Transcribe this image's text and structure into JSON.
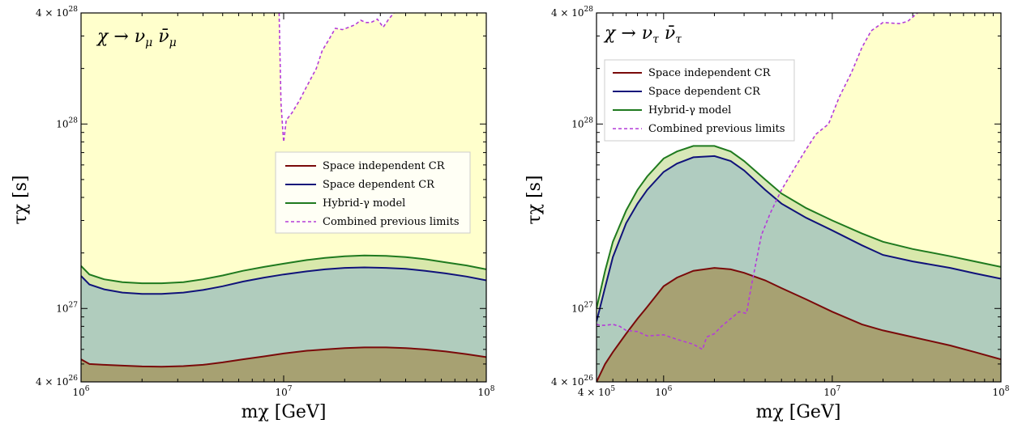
{
  "colors": {
    "excluded_fill": "#ffffcc",
    "space_independent": "#7a0a0a",
    "space_dependent": "#10127a",
    "hybrid": "#1f7a1f",
    "combined": "#b43cd8",
    "fill_space_independent": "#a4935a",
    "fill_space_dependent": "#a3c3c3",
    "fill_hybrid": "#cbe0a0"
  },
  "chart_data": [
    {
      "type": "area",
      "title": "χ → νμ ν̄μ",
      "xlabel": "mχ [GeV]",
      "ylabel": "τχ [s]",
      "xscale": "log",
      "yscale": "log",
      "xlim": [
        1000000,
        100000000
      ],
      "ylim": [
        4e+26,
        4e+28
      ],
      "xtick_labels": [
        "10^6",
        "10^7",
        "10^8"
      ],
      "ytick_labels": [
        "4 × 10^26",
        "10^27",
        "10^28",
        "4 × 10^28"
      ],
      "legend_position": "center-right",
      "legend": [
        "Space independent CR",
        "Space dependent CR",
        "Hybrid-γ model",
        "Combined previous limits"
      ],
      "series": [
        {
          "name": "Space independent CR",
          "x": [
            1000000,
            1100000,
            1300000,
            1600000,
            2000000,
            2500000,
            3200000,
            4000000,
            5000000,
            6300000,
            8000000,
            10000000,
            13000000,
            16000000,
            20000000,
            25000000,
            32000000,
            40000000,
            50000000,
            63000000,
            80000000,
            100000000
          ],
          "y": [
            5.3e+26,
            5e+26,
            4.95e+26,
            4.9e+26,
            4.85e+26,
            4.83e+26,
            4.87e+26,
            4.95e+26,
            5.1e+26,
            5.3e+26,
            5.5e+26,
            5.7e+26,
            5.9e+26,
            6e+26,
            6.1e+26,
            6.15e+26,
            6.15e+26,
            6.1e+26,
            6e+26,
            5.85e+26,
            5.65e+26,
            5.45e+26
          ]
        },
        {
          "name": "Space dependent CR",
          "x": [
            1000000,
            1100000,
            1300000,
            1600000,
            2000000,
            2500000,
            3200000,
            4000000,
            5000000,
            6300000,
            8000000,
            10000000,
            13000000,
            16000000,
            20000000,
            25000000,
            32000000,
            40000000,
            50000000,
            63000000,
            80000000,
            100000000
          ],
          "y": [
            1.5e+27,
            1.35e+27,
            1.27e+27,
            1.22e+27,
            1.2e+27,
            1.2e+27,
            1.22e+27,
            1.26e+27,
            1.32e+27,
            1.4e+27,
            1.47e+27,
            1.53e+27,
            1.59e+27,
            1.63e+27,
            1.66e+27,
            1.67e+27,
            1.66e+27,
            1.64e+27,
            1.6e+27,
            1.55e+27,
            1.49e+27,
            1.42e+27
          ]
        },
        {
          "name": "Hybrid-γ model",
          "x": [
            1000000,
            1100000,
            1300000,
            1600000,
            2000000,
            2500000,
            3200000,
            4000000,
            5000000,
            6300000,
            8000000,
            10000000,
            13000000,
            16000000,
            20000000,
            25000000,
            32000000,
            40000000,
            50000000,
            63000000,
            80000000,
            100000000
          ],
          "y": [
            1.7e+27,
            1.53e+27,
            1.44e+27,
            1.39e+27,
            1.37e+27,
            1.37e+27,
            1.39e+27,
            1.44e+27,
            1.51e+27,
            1.6e+27,
            1.68e+27,
            1.75e+27,
            1.83e+27,
            1.88e+27,
            1.92e+27,
            1.94e+27,
            1.93e+27,
            1.9e+27,
            1.85e+27,
            1.78e+27,
            1.71e+27,
            1.63e+27
          ]
        },
        {
          "name": "Combined previous limits",
          "x": [
            9500000,
            9700000,
            9900000,
            10000000,
            10300000,
            11000000,
            12000000,
            13000000,
            14500000,
            15500000,
            16500000,
            18000000,
            19500000,
            21000000,
            22500000,
            24000000,
            25500000,
            27000000,
            29000000,
            31000000,
            33000000,
            35000000
          ],
          "y": [
            4e+28,
            1.3e+28,
            9.3e+27,
            8e+27,
            1.05e+28,
            1.15e+28,
            1.35e+28,
            1.6e+28,
            2e+28,
            2.5e+28,
            2.8e+28,
            3.3e+28,
            3.25e+28,
            3.35e+28,
            3.45e+28,
            3.65e+28,
            3.55e+28,
            3.55e+28,
            3.7e+28,
            3.35e+28,
            3.7e+28,
            4e+28
          ]
        }
      ]
    },
    {
      "type": "area",
      "title": "χ → ντ ν̄τ",
      "xlabel": "mχ [GeV]",
      "ylabel": "τχ [s]",
      "xscale": "log",
      "yscale": "log",
      "xlim": [
        400000,
        100000000
      ],
      "ylim": [
        4e+26,
        4e+28
      ],
      "xtick_labels": [
        "4 × 10^5",
        "10^6",
        "10^7",
        "10^8"
      ],
      "ytick_labels": [
        "4 × 10^26",
        "10^27",
        "10^28",
        "4 × 10^28"
      ],
      "legend_position": "upper-left",
      "legend": [
        "Space independent CR",
        "Space dependent CR",
        "Hybrid-γ model",
        "Combined previous limits"
      ],
      "series": [
        {
          "name": "Space independent CR",
          "x": [
            400000,
            450000,
            500000,
            600000,
            700000,
            800000,
            1000000,
            1200000,
            1500000,
            2000000,
            2500000,
            3000000,
            4000000,
            5000000,
            7000000,
            10000000,
            15000000,
            20000000,
            30000000,
            50000000,
            70000000,
            100000000
          ],
          "y": [
            4e+26,
            5e+26,
            5.8e+26,
            7.3e+26,
            8.8e+26,
            1.02e+27,
            1.32e+27,
            1.47e+27,
            1.6e+27,
            1.66e+27,
            1.63e+27,
            1.56e+27,
            1.42e+27,
            1.29e+27,
            1.12e+27,
            9.6e+26,
            8.2e+26,
            7.6e+26,
            7e+26,
            6.3e+26,
            5.8e+26,
            5.3e+26
          ]
        },
        {
          "name": "Space dependent CR",
          "x": [
            400000,
            450000,
            500000,
            600000,
            700000,
            800000,
            1000000,
            1200000,
            1500000,
            2000000,
            2500000,
            3000000,
            4000000,
            5000000,
            7000000,
            10000000,
            15000000,
            20000000,
            30000000,
            50000000,
            70000000,
            100000000
          ],
          "y": [
            8.5e+26,
            1.3e+27,
            1.9e+27,
            2.9e+27,
            3.7e+27,
            4.4e+27,
            5.5e+27,
            6.1e+27,
            6.6e+27,
            6.7e+27,
            6.3e+27,
            5.6e+27,
            4.4e+27,
            3.7e+27,
            3.1e+27,
            2.65e+27,
            2.2e+27,
            1.95e+27,
            1.8e+27,
            1.66e+27,
            1.55e+27,
            1.45e+27
          ]
        },
        {
          "name": "Hybrid-γ model",
          "x": [
            400000,
            450000,
            500000,
            600000,
            700000,
            800000,
            1000000,
            1200000,
            1500000,
            2000000,
            2500000,
            3000000,
            4000000,
            5000000,
            7000000,
            10000000,
            15000000,
            20000000,
            30000000,
            50000000,
            70000000,
            100000000
          ],
          "y": [
            1e+27,
            1.6e+27,
            2.3e+27,
            3.4e+27,
            4.4e+27,
            5.2e+27,
            6.5e+27,
            7.1e+27,
            7.6e+27,
            7.6e+27,
            7.1e+27,
            6.3e+27,
            5e+27,
            4.2e+27,
            3.5e+27,
            3e+27,
            2.55e+27,
            2.3e+27,
            2.1e+27,
            1.92e+27,
            1.8e+27,
            1.68e+27
          ]
        },
        {
          "name": "Combined previous limits",
          "x": [
            400000,
            420000,
            450000,
            500000,
            550000,
            600000,
            700000,
            800000,
            1000000,
            1200000,
            1500000,
            1700000,
            1800000,
            2000000,
            2200000,
            2500000,
            2800000,
            3100000,
            3300000,
            3500000,
            3800000,
            4300000,
            5000000,
            6000000,
            7000000,
            8000000,
            9500000,
            11000000,
            13000000,
            15000000,
            17000000,
            20000000,
            25000000,
            28000000,
            32000000
          ],
          "y": [
            8.2e+26,
            8.1e+26,
            8.1e+26,
            8.2e+26,
            8e+26,
            7.6e+26,
            7.5e+26,
            7.1e+26,
            7.2e+26,
            6.8e+26,
            6.4e+26,
            6e+26,
            7e+26,
            7.3e+26,
            8e+26,
            8.8e+26,
            9.6e+26,
            9.4e+26,
            1.3e+27,
            1.7e+27,
            2.5e+27,
            3.3e+27,
            4.4e+27,
            5.8e+27,
            7.3e+27,
            8.8e+27,
            1e+28,
            1.4e+28,
            1.9e+28,
            2.6e+28,
            3.2e+28,
            3.55e+28,
            3.5e+28,
            3.6e+28,
            4e+28
          ]
        }
      ]
    }
  ]
}
